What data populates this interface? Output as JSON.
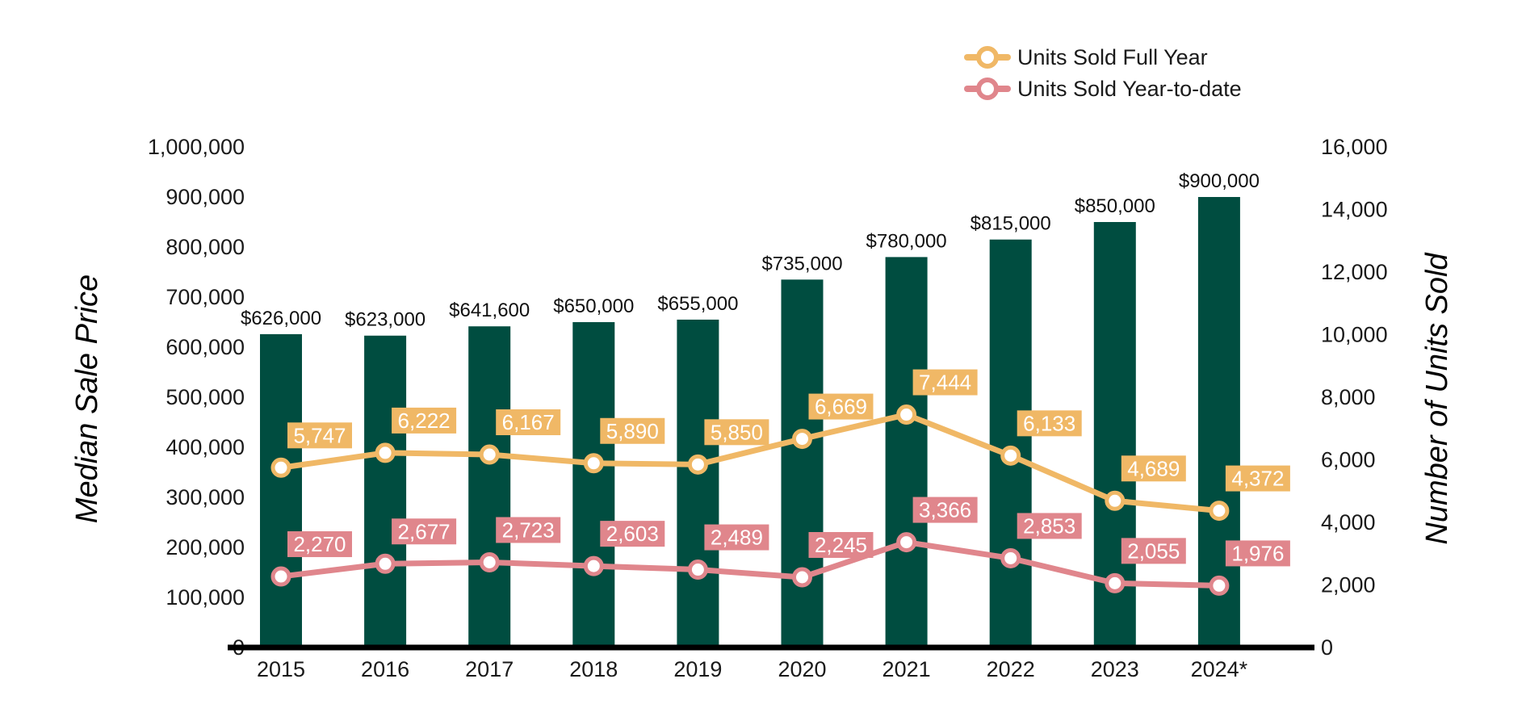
{
  "colors": {
    "bar": "#004D40",
    "full_year": "#F0B866",
    "ytd": "#E0868C",
    "axis": "#000000",
    "text": "#1a1a1a"
  },
  "chart_data": {
    "type": "bar",
    "categories": [
      "2015",
      "2016",
      "2017",
      "2018",
      "2019",
      "2020",
      "2021",
      "2022",
      "2023",
      "2024*"
    ],
    "bar_series": {
      "values": [
        626000,
        623000,
        641600,
        650000,
        655000,
        735000,
        780000,
        815000,
        850000,
        900000
      ],
      "labels": [
        "$626,000",
        "$623,000",
        "$641,600",
        "$650,000",
        "$655,000",
        "$735,000",
        "$780,000",
        "$815,000",
        "$850,000",
        "$900,000"
      ]
    },
    "line_series": [
      {
        "name": "Units Sold Full Year",
        "color": "#F0B866",
        "values": [
          5747,
          6222,
          6167,
          5890,
          5850,
          6669,
          7444,
          6133,
          4689,
          4372
        ],
        "labels": [
          "5,747",
          "6,222",
          "6,167",
          "5,890",
          "5,850",
          "6,669",
          "7,444",
          "6,133",
          "4,689",
          "4,372"
        ]
      },
      {
        "name": "Units Sold Year-to-date",
        "color": "#E0868C",
        "values": [
          2270,
          2677,
          2723,
          2603,
          2489,
          2245,
          3366,
          2853,
          2055,
          1976
        ],
        "labels": [
          "2,270",
          "2,677",
          "2,723",
          "2,603",
          "2,489",
          "2,245",
          "3,366",
          "2,853",
          "2,055",
          "1,976"
        ]
      }
    ],
    "left_axis": {
      "title": "Median Sale Price",
      "range": [
        0,
        1000000
      ],
      "ticks": [
        0,
        100000,
        200000,
        300000,
        400000,
        500000,
        600000,
        700000,
        800000,
        900000,
        1000000
      ],
      "tick_labels": [
        "0",
        "100,000",
        "200,000",
        "300,000",
        "400,000",
        "500,000",
        "600,000",
        "700,000",
        "800,000",
        "900,000",
        "1,000,000"
      ]
    },
    "right_axis": {
      "title": "Number of Units Sold",
      "range": [
        0,
        16000
      ],
      "ticks": [
        0,
        2000,
        4000,
        6000,
        8000,
        10000,
        12000,
        14000,
        16000
      ],
      "tick_labels": [
        "0",
        "2,000",
        "4,000",
        "6,000",
        "8,000",
        "10,000",
        "12,000",
        "14,000",
        "16,000"
      ]
    },
    "legend_position": "top-right",
    "grid": false
  }
}
